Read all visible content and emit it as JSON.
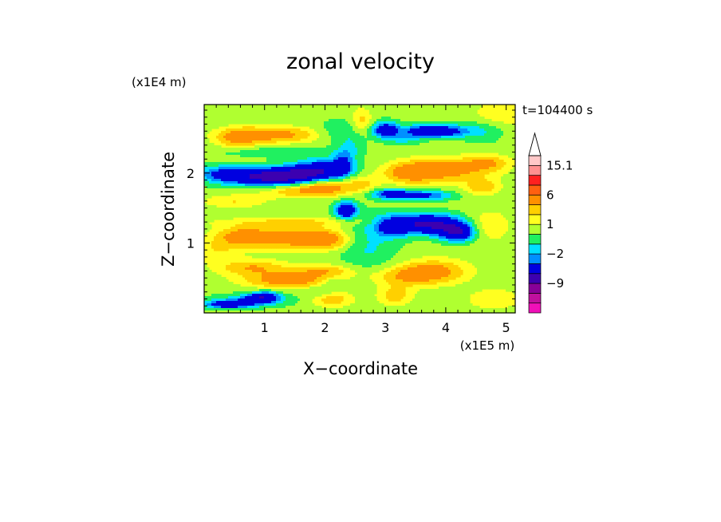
{
  "chart_data": {
    "type": "heatmap",
    "title": "zonal velocity",
    "xlabel": "X−coordinate",
    "ylabel": "Z−coordinate",
    "x_unit": "(x1E5 m)",
    "y_unit": "(x1E4 m)",
    "time_label": "t=104400 s",
    "xlim": [
      0,
      5.15
    ],
    "ylim": [
      0,
      2.98
    ],
    "x_ticks": [
      1,
      2,
      3,
      4,
      5
    ],
    "y_ticks": [
      1,
      2
    ],
    "colorbar": {
      "levels": [
        -15,
        -12,
        -9,
        -6,
        -3,
        -2,
        -1,
        0,
        1,
        2,
        3,
        6,
        9,
        12,
        15.1
      ],
      "colors": [
        "#f010b8",
        "#c0109e",
        "#880098",
        "#3c00b0",
        "#0000e0",
        "#0090ff",
        "#00e0ff",
        "#20f060",
        "#b0ff30",
        "#ffff20",
        "#ffd000",
        "#ff9000",
        "#ff6010",
        "#ff2020",
        "#ff9090",
        "#ffc8c8"
      ],
      "labels": [
        {
          "value": 15.1,
          "text": "15.1"
        },
        {
          "value": 6,
          "text": "6"
        },
        {
          "value": 1,
          "text": "1"
        },
        {
          "value": -2,
          "text": "−2"
        },
        {
          "value": -9,
          "text": "−9"
        }
      ],
      "extend_max": true
    },
    "background_level": 0.4,
    "features": [
      {
        "x": 1.3,
        "z": 1.07,
        "sx": 0.5,
        "sz": 0.11,
        "value": 3.2
      },
      {
        "x": 2.0,
        "z": 1.05,
        "sx": 0.3,
        "sz": 0.1,
        "value": 3.4
      },
      {
        "x": 0.6,
        "z": 1.1,
        "sx": 0.3,
        "sz": 0.1,
        "value": 2.6
      },
      {
        "x": 1.5,
        "z": 1.3,
        "sx": 0.9,
        "sz": 0.05,
        "value": 1.6
      },
      {
        "x": 2.35,
        "z": 1.47,
        "sx": 0.12,
        "sz": 0.08,
        "value": -6
      },
      {
        "x": 2.7,
        "z": 0.98,
        "sx": 0.35,
        "sz": 0.3,
        "value": -1.6
      },
      {
        "x": 3.7,
        "z": 1.27,
        "sx": 0.38,
        "sz": 0.1,
        "value": -7
      },
      {
        "x": 4.2,
        "z": 1.15,
        "sx": 0.2,
        "sz": 0.09,
        "value": -6
      },
      {
        "x": 3.1,
        "z": 1.24,
        "sx": 0.2,
        "sz": 0.1,
        "value": -3.5
      },
      {
        "x": 3.8,
        "z": 0.6,
        "sx": 0.4,
        "sz": 0.12,
        "value": 3
      },
      {
        "x": 3.3,
        "z": 0.52,
        "sx": 0.4,
        "sz": 0.1,
        "value": 2.2
      },
      {
        "x": 3.15,
        "z": 0.25,
        "sx": 0.2,
        "sz": 0.1,
        "value": 2.2
      },
      {
        "x": 1.4,
        "z": 0.47,
        "sx": 0.5,
        "sz": 0.08,
        "value": 3.6
      },
      {
        "x": 0.8,
        "z": 0.65,
        "sx": 0.4,
        "sz": 0.08,
        "value": 2.6
      },
      {
        "x": 2.1,
        "z": 0.2,
        "sx": 0.25,
        "sz": 0.08,
        "value": 2.4
      },
      {
        "x": 2.0,
        "z": 0.6,
        "sx": 0.35,
        "sz": 0.07,
        "value": 2.4
      },
      {
        "x": 2.1,
        "z": 0.45,
        "sx": 0.15,
        "sz": 0.07,
        "value": -1.2
      },
      {
        "x": 1.9,
        "z": 0.3,
        "sx": 0.18,
        "sz": 0.06,
        "value": -1.2
      },
      {
        "x": 0.8,
        "z": 0.18,
        "sx": 0.55,
        "sz": 0.07,
        "value": -1.6
      },
      {
        "x": 0.4,
        "z": 0.12,
        "sx": 0.25,
        "sz": 0.04,
        "value": -5
      },
      {
        "x": 0.9,
        "z": 0.2,
        "sx": 0.2,
        "sz": 0.05,
        "value": -4
      },
      {
        "x": 1.05,
        "z": 0.25,
        "sx": 0.15,
        "sz": 0.05,
        "value": -2.5
      },
      {
        "x": 1.0,
        "z": 1.94,
        "sx": 0.55,
        "sz": 0.09,
        "value": -5.5
      },
      {
        "x": 1.95,
        "z": 2.05,
        "sx": 0.35,
        "sz": 0.1,
        "value": -5
      },
      {
        "x": 1.4,
        "z": 1.97,
        "sx": 0.4,
        "sz": 0.08,
        "value": -3.6
      },
      {
        "x": 2.3,
        "z": 2.15,
        "sx": 0.12,
        "sz": 0.12,
        "value": -3
      },
      {
        "x": 0.3,
        "z": 2.0,
        "sx": 0.3,
        "sz": 0.08,
        "value": -2.5
      },
      {
        "x": 1.15,
        "z": 2.55,
        "sx": 0.5,
        "sz": 0.08,
        "value": 3.4
      },
      {
        "x": 0.55,
        "z": 2.5,
        "sx": 0.25,
        "sz": 0.1,
        "value": 2.6
      },
      {
        "x": 2.0,
        "z": 1.8,
        "sx": 0.3,
        "sz": 0.08,
        "value": 3.5
      },
      {
        "x": 1.45,
        "z": 1.75,
        "sx": 0.4,
        "sz": 0.07,
        "value": 2.2
      },
      {
        "x": 2.6,
        "z": 1.85,
        "sx": 0.2,
        "sz": 0.1,
        "value": 1.8
      },
      {
        "x": 3.1,
        "z": 1.7,
        "sx": 0.25,
        "sz": 0.05,
        "value": -4.5
      },
      {
        "x": 3.7,
        "z": 1.68,
        "sx": 0.3,
        "sz": 0.05,
        "value": -3.5
      },
      {
        "x": 3.4,
        "z": 2.0,
        "sx": 0.3,
        "sz": 0.1,
        "value": 3
      },
      {
        "x": 4.0,
        "z": 2.05,
        "sx": 0.5,
        "sz": 0.12,
        "value": 3.4
      },
      {
        "x": 4.7,
        "z": 2.15,
        "sx": 0.25,
        "sz": 0.08,
        "value": 2.3
      },
      {
        "x": 4.6,
        "z": 1.8,
        "sx": 0.2,
        "sz": 0.08,
        "value": 2.3
      },
      {
        "x": 3.0,
        "z": 2.62,
        "sx": 0.15,
        "sz": 0.08,
        "value": -5
      },
      {
        "x": 3.8,
        "z": 2.6,
        "sx": 0.35,
        "sz": 0.06,
        "value": -6.5
      },
      {
        "x": 3.3,
        "z": 2.48,
        "sx": 0.2,
        "sz": 0.06,
        "value": -1.5
      },
      {
        "x": 4.6,
        "z": 2.6,
        "sx": 0.25,
        "sz": 0.12,
        "value": -1.3
      },
      {
        "x": 2.25,
        "z": 2.6,
        "sx": 0.25,
        "sz": 0.12,
        "value": -1.4
      },
      {
        "x": 2.45,
        "z": 2.38,
        "sx": 0.15,
        "sz": 0.12,
        "value": -1.2
      },
      {
        "x": 1.25,
        "z": 2.3,
        "sx": 0.7,
        "sz": 0.05,
        "value": -1.4
      },
      {
        "x": 2.6,
        "z": 2.75,
        "sx": 0.12,
        "sz": 0.12,
        "value": 2.0
      },
      {
        "x": 4.9,
        "z": 2.85,
        "sx": 0.3,
        "sz": 0.12,
        "value": 1.6
      },
      {
        "x": 4.7,
        "z": 1.25,
        "sx": 0.25,
        "sz": 0.15,
        "value": 1.6
      },
      {
        "x": 4.8,
        "z": 0.2,
        "sx": 0.3,
        "sz": 0.1,
        "value": 1.6
      },
      {
        "x": 0.5,
        "z": 1.6,
        "sx": 0.35,
        "sz": 0.07,
        "value": 1.6
      },
      {
        "x": 0.2,
        "z": 0.9,
        "sx": 0.25,
        "sz": 0.12,
        "value": 1.4
      }
    ]
  }
}
